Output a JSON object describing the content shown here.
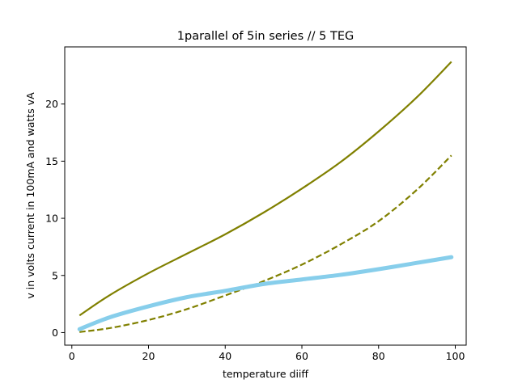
{
  "chart_data": {
    "type": "line",
    "title": "1parallel  of 5in series // 5 TEG",
    "xlabel": "temperature diiff",
    "ylabel": "v in volts current in 100mA and watts vA",
    "xlim": [
      -1.85,
      102.85
    ],
    "ylim": [
      -1.1,
      25.0
    ],
    "xticks": [
      0,
      20,
      40,
      60,
      80,
      100
    ],
    "yticks": [
      0,
      5,
      10,
      15,
      20
    ],
    "grid": false,
    "legend": "none",
    "series": [
      {
        "color": "#808000",
        "style": "solid",
        "x": [
          2,
          10,
          20,
          30,
          40,
          50,
          60,
          70,
          80,
          90,
          99
        ],
        "y": [
          1.5,
          3.3,
          5.2,
          6.9,
          8.6,
          10.5,
          12.6,
          14.9,
          17.6,
          20.6,
          23.7
        ]
      },
      {
        "color": "#808000",
        "style": "dashed",
        "x": [
          2,
          10,
          20,
          30,
          40,
          50,
          60,
          70,
          80,
          90,
          99
        ],
        "y": [
          0.05,
          0.4,
          1.1,
          2.05,
          3.25,
          4.5,
          5.95,
          7.7,
          9.75,
          12.5,
          15.5
        ]
      },
      {
        "color": "#87ceeb",
        "style": "thick",
        "x": [
          2,
          10,
          20,
          30,
          40,
          50,
          60,
          70,
          80,
          90,
          99
        ],
        "y": [
          0.3,
          1.35,
          2.3,
          3.1,
          3.65,
          4.25,
          4.65,
          5.05,
          5.55,
          6.1,
          6.6
        ]
      }
    ]
  }
}
